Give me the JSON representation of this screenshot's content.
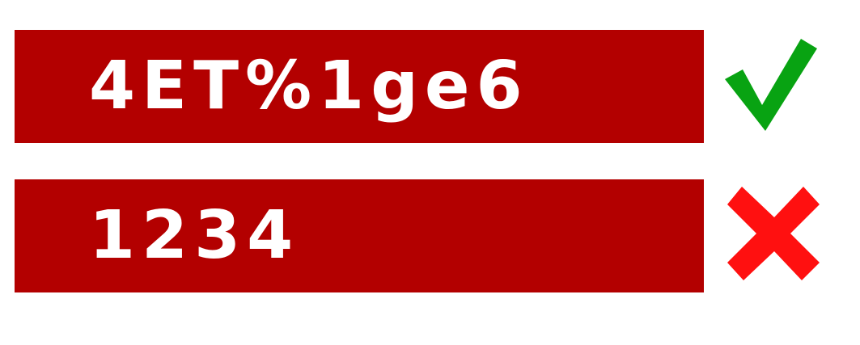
{
  "examples": [
    {
      "password": "4ET%1ge6",
      "status": "valid",
      "icon": "checkmark-icon",
      "icon_color": "#08a312"
    },
    {
      "password": "1234",
      "status": "invalid",
      "icon": "cross-icon",
      "icon_color": "#ff1010"
    }
  ],
  "colors": {
    "box_background": "#b30000",
    "text": "#ffffff",
    "page_background": "#ffffff"
  }
}
